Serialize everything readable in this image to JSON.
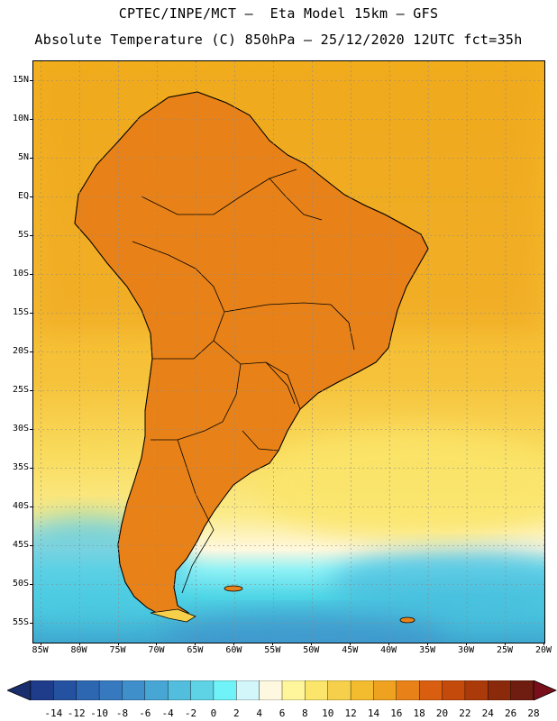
{
  "header": {
    "line1": "CPTEC/INPE/MCT –  Eta Model 15km – GFS",
    "line2": "Absolute Temperature (C) 850hPa – 25/12/2020 12UTC fct=35h"
  },
  "map": {
    "lat_labels": [
      "15N",
      "10N",
      "5N",
      "EQ",
      "5S",
      "10S",
      "15S",
      "20S",
      "25S",
      "30S",
      "35S",
      "40S",
      "45S",
      "50S",
      "55S"
    ],
    "lat_values": [
      15,
      10,
      5,
      0,
      -5,
      -10,
      -15,
      -20,
      -25,
      -30,
      -35,
      -40,
      -45,
      -50,
      -55
    ],
    "lon_labels": [
      "85W",
      "80W",
      "75W",
      "70W",
      "65W",
      "60W",
      "55W",
      "50W",
      "45W",
      "40W",
      "35W",
      "30W",
      "25W",
      "20W"
    ],
    "lon_values": [
      -85,
      -80,
      -75,
      -70,
      -65,
      -60,
      -55,
      -50,
      -45,
      -40,
      -35,
      -30,
      -25,
      -20
    ],
    "lat_range": [
      -57.5,
      17.5
    ],
    "lon_range": [
      -86,
      -20
    ]
  },
  "colorbar": {
    "labels": [
      "-14",
      "-12",
      "-10",
      "-8",
      "-6",
      "-4",
      "-2",
      "0",
      "2",
      "4",
      "6",
      "8",
      "10",
      "12",
      "14",
      "16",
      "18",
      "20",
      "22",
      "24",
      "26",
      "28"
    ],
    "colors": [
      "#1f3c8a",
      "#2552a0",
      "#2d67b1",
      "#3679bf",
      "#3f8fca",
      "#48a6d4",
      "#52bddc",
      "#5fd3e6",
      "#6ff3f8",
      "#d3f6fa",
      "#fff8e0",
      "#fff59a",
      "#fbe56a",
      "#f6d04a",
      "#f2bc2e",
      "#eea21f",
      "#e88218",
      "#d95e10",
      "#c44a0c",
      "#ab3a0a",
      "#8a2a0a",
      "#6e1d10"
    ],
    "extend_low_color": "#1a2e6e",
    "extend_high_color": "#7a0f1c"
  }
}
